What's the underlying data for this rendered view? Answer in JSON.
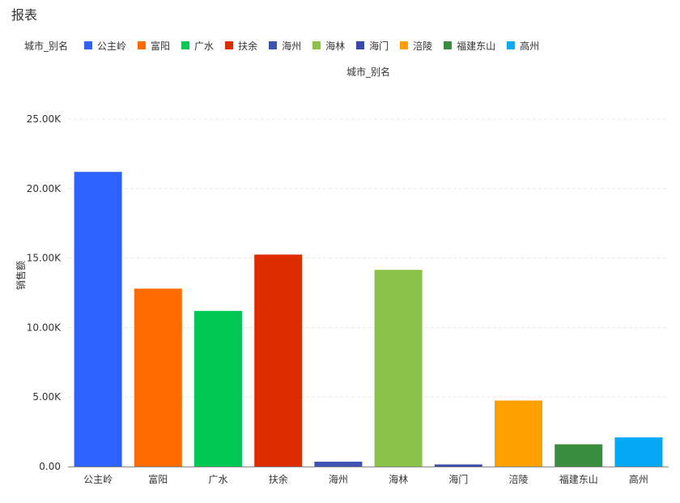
{
  "header": {
    "title": "报表"
  },
  "legend": {
    "title": "城市_别名",
    "items": [
      {
        "label": "公主岭",
        "color": "#2E62FF"
      },
      {
        "label": "富阳",
        "color": "#FF6B00"
      },
      {
        "label": "广水",
        "color": "#00C853"
      },
      {
        "label": "扶余",
        "color": "#DD2C00"
      },
      {
        "label": "海州",
        "color": "#3F51B5"
      },
      {
        "label": "海林",
        "color": "#8BC34A"
      },
      {
        "label": "海门",
        "color": "#3949AB"
      },
      {
        "label": "涪陵",
        "color": "#FF9F00"
      },
      {
        "label": "福建东山",
        "color": "#388E3C"
      },
      {
        "label": "高州",
        "color": "#03A9F4"
      }
    ]
  },
  "chart_data": {
    "type": "bar",
    "categories": [
      "公主岭",
      "富阳",
      "广水",
      "扶余",
      "海州",
      "海林",
      "海门",
      "涪陵",
      "福建东山",
      "高州"
    ],
    "values": [
      21200,
      12800,
      11200,
      15250,
      350,
      14150,
      150,
      4750,
      1600,
      2100
    ],
    "colors": [
      "#2E62FF",
      "#FF6B00",
      "#00C853",
      "#DD2C00",
      "#3F51B5",
      "#8BC34A",
      "#3949AB",
      "#FF9F00",
      "#388E3C",
      "#03A9F4"
    ],
    "xlabel": "城市_别名",
    "ylabel": "销售额",
    "ylim": [
      0,
      25000
    ],
    "y_ticks": [
      {
        "value": 0,
        "label": "0.00"
      },
      {
        "value": 5000,
        "label": "5.00K"
      },
      {
        "value": 10000,
        "label": "10.00K"
      },
      {
        "value": 15000,
        "label": "15.00K"
      },
      {
        "value": 20000,
        "label": "20.00K"
      },
      {
        "value": 25000,
        "label": "25.00K"
      }
    ],
    "grid": true,
    "legend_position": "top-left"
  }
}
